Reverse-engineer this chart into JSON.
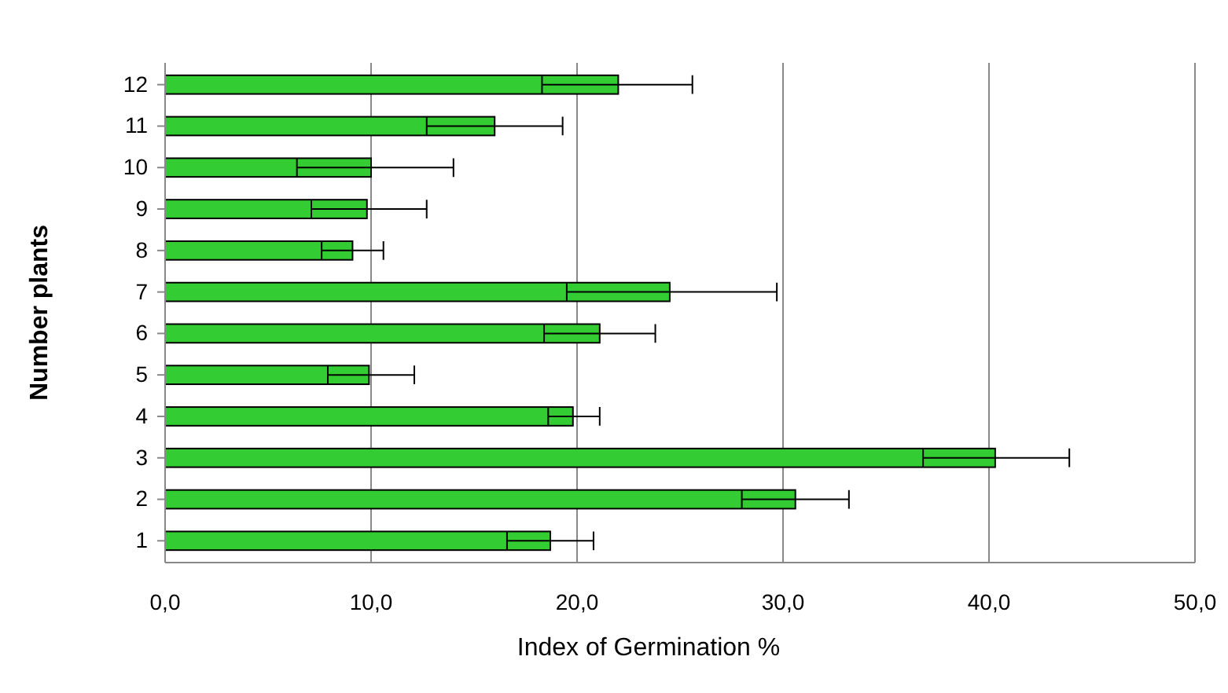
{
  "chart_data": {
    "type": "bar",
    "orientation": "horizontal",
    "xlabel": "Index of Germination %",
    "ylabel": "Number plants",
    "categories": [
      "12",
      "11",
      "10",
      "9",
      "8",
      "7",
      "6",
      "5",
      "4",
      "3",
      "2",
      "1"
    ],
    "values": [
      22.0,
      16.0,
      10.0,
      9.8,
      9.1,
      24.5,
      21.1,
      9.9,
      19.8,
      40.3,
      30.6,
      18.7
    ],
    "errors": [
      [
        18.3,
        25.6
      ],
      [
        12.7,
        19.3
      ],
      [
        6.4,
        14.0
      ],
      [
        7.1,
        12.7
      ],
      [
        7.6,
        10.6
      ],
      [
        19.5,
        29.7
      ],
      [
        18.4,
        23.8
      ],
      [
        7.9,
        12.1
      ],
      [
        18.6,
        21.1
      ],
      [
        36.8,
        43.9
      ],
      [
        28.0,
        33.2
      ],
      [
        16.6,
        20.8
      ]
    ],
    "color": "#33cc33",
    "xlim": [
      0,
      50
    ],
    "xticks": [
      {
        "value": 0,
        "label": "0,0"
      },
      {
        "value": 10,
        "label": "10,0"
      },
      {
        "value": 20,
        "label": "20,0"
      },
      {
        "value": 30,
        "label": "30,0"
      },
      {
        "value": 40,
        "label": "40,0"
      },
      {
        "value": 50,
        "label": "50,0"
      }
    ],
    "grid": "x"
  }
}
